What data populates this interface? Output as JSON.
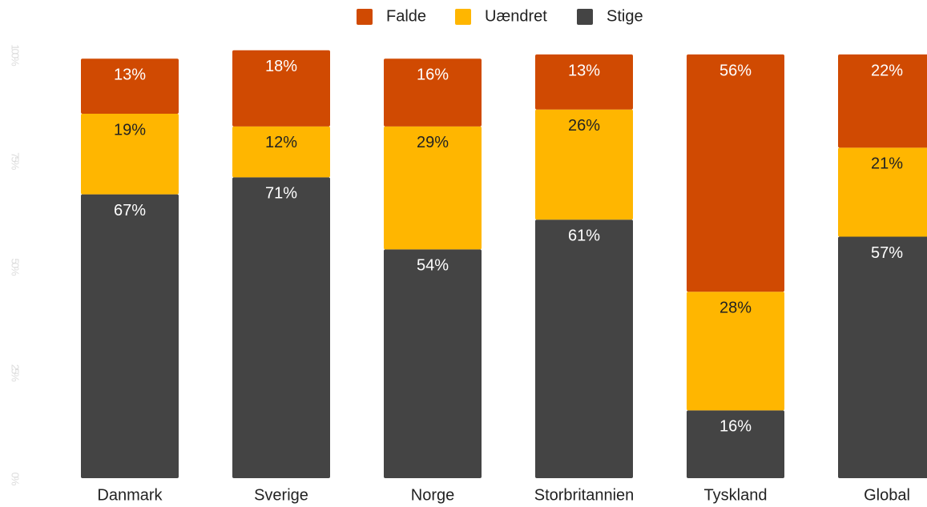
{
  "chart_data": {
    "type": "stacked_bar",
    "categories": [
      "Danmark",
      "Sverige",
      "Norge",
      "Storbritannien",
      "Tyskland",
      "Global"
    ],
    "series": [
      {
        "name": "Falde",
        "color": "#d04a02",
        "values": [
          13,
          18,
          16,
          13,
          56,
          22
        ],
        "value_labels": [
          "13%",
          "18%",
          "16%",
          "13%",
          "56%",
          "22%"
        ]
      },
      {
        "name": "Uændret",
        "color": "#ffb600",
        "values": [
          19,
          12,
          29,
          26,
          28,
          21
        ],
        "value_labels": [
          "19%",
          "12%",
          "29%",
          "26%",
          "28%",
          "21%"
        ]
      },
      {
        "name": "Stige",
        "color": "#444444",
        "values": [
          67,
          71,
          54,
          61,
          16,
          57
        ],
        "value_labels": [
          "67%",
          "71%",
          "54%",
          "61%",
          "16%",
          "57%"
        ]
      }
    ],
    "ylim": [
      0,
      100
    ],
    "yticks": [
      {
        "value": 0,
        "label": "0%"
      },
      {
        "value": 25,
        "label": "25%"
      },
      {
        "value": 50,
        "label": "50%"
      },
      {
        "value": 75,
        "label": "75%"
      },
      {
        "value": 100,
        "label": "100%"
      }
    ],
    "legend": "top"
  }
}
